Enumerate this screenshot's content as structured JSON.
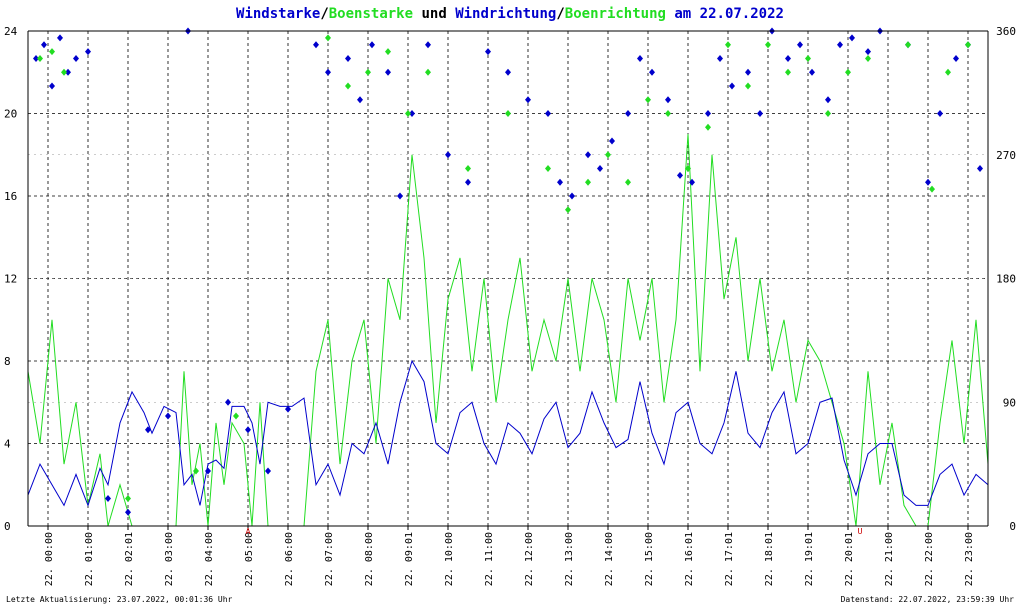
{
  "colors": {
    "wind": "#0000cc",
    "gust": "#22dd22",
    "marker": "#cc0000",
    "grid": "#000000",
    "background": "#ffffff"
  },
  "title": {
    "parts": [
      {
        "text": "Windstarke",
        "color": "#0000cc"
      },
      {
        "text": "/",
        "color": "#000000"
      },
      {
        "text": "Boenstarke",
        "color": "#22dd22"
      },
      {
        "text": " und ",
        "color": "#000000"
      },
      {
        "text": "Windrichtung",
        "color": "#0000cc"
      },
      {
        "text": "/",
        "color": "#000000"
      },
      {
        "text": "Boenrichtung",
        "color": "#22dd22"
      },
      {
        "text": " am 22.07.2022",
        "color": "#0000cc"
      }
    ]
  },
  "footer": {
    "left": "Letzte Aktualisierung: 23.07.2022, 00:01:36 Uhr",
    "right": "Datenstand: 22.07.2022, 23:59:39 Uhr"
  },
  "markers": [
    {
      "label": "A",
      "hour": 5.5
    },
    {
      "label": "U",
      "hour": 20.8
    }
  ],
  "chart_data": {
    "type": "line",
    "x_unit": "hour of day",
    "x_tick_labels": [
      "22. 00:00",
      "22. 01:00",
      "22. 02:01",
      "22. 03:00",
      "22. 04:00",
      "22. 05:00",
      "22. 06:00",
      "22. 07:00",
      "22. 08:00",
      "22. 09:01",
      "22. 10:00",
      "22. 11:00",
      "22. 12:00",
      "22. 13:00",
      "22. 14:00",
      "22. 15:00",
      "22. 16:01",
      "22. 17:01",
      "22. 18:01",
      "22. 19:01",
      "22. 20:01",
      "22. 21:00",
      "22. 22:00",
      "22. 23:00"
    ],
    "xlim": [
      0,
      24
    ],
    "y_left": {
      "ylim": [
        0,
        24
      ],
      "ticks": [
        "0",
        "4",
        "8",
        "12",
        "16",
        "20",
        "24"
      ]
    },
    "y_right": {
      "ylim": [
        0,
        360
      ],
      "ticks": [
        "0",
        "90",
        "180",
        "270",
        "360"
      ]
    },
    "grid": true,
    "series": [
      {
        "kind": "wind_speed",
        "axis": "left",
        "style": "line",
        "points": [
          [
            0,
            1.5
          ],
          [
            0.3,
            3
          ],
          [
            0.6,
            2
          ],
          [
            0.9,
            1
          ],
          [
            1.2,
            2.5
          ],
          [
            1.5,
            1
          ],
          [
            1.8,
            2.8
          ],
          [
            2,
            2
          ],
          [
            2.3,
            5
          ],
          [
            2.6,
            6.5
          ],
          [
            2.9,
            5.5
          ],
          [
            3.1,
            4.5
          ],
          [
            3.4,
            5.8
          ],
          [
            3.7,
            5.5
          ],
          [
            3.9,
            2
          ],
          [
            4.1,
            2.5
          ],
          [
            4.3,
            1
          ],
          [
            4.5,
            3
          ],
          [
            4.7,
            3.2
          ],
          [
            4.9,
            2.8
          ],
          [
            5.1,
            5.8
          ],
          [
            5.4,
            5.8
          ],
          [
            5.6,
            5
          ],
          [
            5.8,
            3
          ],
          [
            6,
            6
          ],
          [
            6.3,
            5.8
          ],
          [
            6.6,
            5.8
          ],
          [
            6.9,
            6.2
          ],
          [
            7.2,
            2
          ],
          [
            7.5,
            3
          ],
          [
            7.8,
            1.5
          ],
          [
            8.1,
            4
          ],
          [
            8.4,
            3.5
          ],
          [
            8.7,
            5
          ],
          [
            9,
            3
          ],
          [
            9.3,
            6
          ],
          [
            9.6,
            8
          ],
          [
            9.9,
            7
          ],
          [
            10.2,
            4
          ],
          [
            10.5,
            3.5
          ],
          [
            10.8,
            5.5
          ],
          [
            11.1,
            6
          ],
          [
            11.4,
            4
          ],
          [
            11.7,
            3
          ],
          [
            12,
            5
          ],
          [
            12.3,
            4.5
          ],
          [
            12.6,
            3.5
          ],
          [
            12.9,
            5.2
          ],
          [
            13.2,
            6
          ],
          [
            13.5,
            3.8
          ],
          [
            13.8,
            4.5
          ],
          [
            14.1,
            6.5
          ],
          [
            14.4,
            5
          ],
          [
            14.7,
            3.8
          ],
          [
            15,
            4.2
          ],
          [
            15.3,
            7
          ],
          [
            15.6,
            4.5
          ],
          [
            15.9,
            3
          ],
          [
            16.2,
            5.5
          ],
          [
            16.5,
            6
          ],
          [
            16.8,
            4
          ],
          [
            17.1,
            3.5
          ],
          [
            17.4,
            5
          ],
          [
            17.7,
            7.5
          ],
          [
            18,
            4.5
          ],
          [
            18.3,
            3.8
          ],
          [
            18.6,
            5.5
          ],
          [
            18.9,
            6.5
          ],
          [
            19.2,
            3.5
          ],
          [
            19.5,
            4
          ],
          [
            19.8,
            6
          ],
          [
            20.1,
            6.2
          ],
          [
            20.4,
            3.2
          ],
          [
            20.7,
            1.5
          ],
          [
            21,
            3.5
          ],
          [
            21.3,
            4
          ],
          [
            21.6,
            4
          ],
          [
            21.9,
            1.5
          ],
          [
            22.2,
            1
          ],
          [
            22.5,
            1
          ],
          [
            22.8,
            2.5
          ],
          [
            23.1,
            3
          ],
          [
            23.4,
            1.5
          ],
          [
            23.7,
            2.5
          ],
          [
            24,
            2
          ]
        ]
      },
      {
        "kind": "gust_speed",
        "axis": "left",
        "style": "line",
        "points": [
          [
            0,
            7.5
          ],
          [
            0.3,
            4
          ],
          [
            0.6,
            10
          ],
          [
            0.9,
            3
          ],
          [
            1.2,
            6
          ],
          [
            1.5,
            1
          ],
          [
            1.8,
            3.5
          ],
          [
            2,
            0
          ],
          [
            2.3,
            2
          ],
          [
            2.6,
            0
          ],
          [
            2.9,
            0
          ],
          [
            3.1,
            0
          ],
          [
            3.4,
            0
          ],
          [
            3.7,
            0
          ],
          [
            3.9,
            7.5
          ],
          [
            4.1,
            2
          ],
          [
            4.3,
            4
          ],
          [
            4.5,
            0
          ],
          [
            4.7,
            5
          ],
          [
            4.9,
            2
          ],
          [
            5.1,
            5
          ],
          [
            5.4,
            4
          ],
          [
            5.6,
            0
          ],
          [
            5.8,
            6
          ],
          [
            6,
            0
          ],
          [
            6.3,
            0
          ],
          [
            6.6,
            0
          ],
          [
            6.9,
            0
          ],
          [
            7.2,
            7.5
          ],
          [
            7.5,
            10
          ],
          [
            7.8,
            3
          ],
          [
            8.1,
            8
          ],
          [
            8.4,
            10
          ],
          [
            8.7,
            4
          ],
          [
            9,
            12
          ],
          [
            9.3,
            10
          ],
          [
            9.6,
            18
          ],
          [
            9.9,
            13
          ],
          [
            10.2,
            5
          ],
          [
            10.5,
            11
          ],
          [
            10.8,
            13
          ],
          [
            11.1,
            7.5
          ],
          [
            11.4,
            12
          ],
          [
            11.7,
            6
          ],
          [
            12,
            10
          ],
          [
            12.3,
            13
          ],
          [
            12.6,
            7.5
          ],
          [
            12.9,
            10
          ],
          [
            13.2,
            8
          ],
          [
            13.5,
            12
          ],
          [
            13.8,
            7.5
          ],
          [
            14.1,
            12
          ],
          [
            14.4,
            10
          ],
          [
            14.7,
            6
          ],
          [
            15,
            12
          ],
          [
            15.3,
            9
          ],
          [
            15.6,
            12
          ],
          [
            15.9,
            6
          ],
          [
            16.2,
            10
          ],
          [
            16.5,
            19
          ],
          [
            16.8,
            7.5
          ],
          [
            17.1,
            18
          ],
          [
            17.4,
            11
          ],
          [
            17.7,
            14
          ],
          [
            18,
            8
          ],
          [
            18.3,
            12
          ],
          [
            18.6,
            7.5
          ],
          [
            18.9,
            10
          ],
          [
            19.2,
            6
          ],
          [
            19.5,
            9
          ],
          [
            19.8,
            8
          ],
          [
            20.1,
            6
          ],
          [
            20.4,
            4
          ],
          [
            20.7,
            0
          ],
          [
            21,
            7.5
          ],
          [
            21.3,
            2
          ],
          [
            21.6,
            5
          ],
          [
            21.9,
            1
          ],
          [
            22.2,
            0
          ],
          [
            22.5,
            0
          ],
          [
            22.8,
            5
          ],
          [
            23.1,
            9
          ],
          [
            23.4,
            4
          ],
          [
            23.7,
            10
          ],
          [
            24,
            3
          ]
        ]
      },
      {
        "kind": "wind_direction",
        "axis": "right",
        "style": "points",
        "points": [
          [
            0.2,
            340
          ],
          [
            0.4,
            350
          ],
          [
            0.6,
            320
          ],
          [
            0.8,
            355
          ],
          [
            1,
            330
          ],
          [
            1.2,
            340
          ],
          [
            1.5,
            345
          ],
          [
            2,
            20
          ],
          [
            2.5,
            10
          ],
          [
            3,
            70
          ],
          [
            3.5,
            80
          ],
          [
            4,
            360
          ],
          [
            4.5,
            40
          ],
          [
            5,
            90
          ],
          [
            5.5,
            70
          ],
          [
            6,
            40
          ],
          [
            6.5,
            85
          ],
          [
            7.2,
            350
          ],
          [
            7.5,
            330
          ],
          [
            8,
            340
          ],
          [
            8.3,
            310
          ],
          [
            8.6,
            350
          ],
          [
            9,
            330
          ],
          [
            9.3,
            240
          ],
          [
            9.6,
            300
          ],
          [
            10,
            350
          ],
          [
            10.5,
            270
          ],
          [
            11,
            250
          ],
          [
            11.5,
            345
          ],
          [
            12,
            330
          ],
          [
            12.5,
            310
          ],
          [
            13,
            300
          ],
          [
            13.3,
            250
          ],
          [
            13.6,
            240
          ],
          [
            14,
            270
          ],
          [
            14.3,
            260
          ],
          [
            14.6,
            280
          ],
          [
            15,
            300
          ],
          [
            15.3,
            340
          ],
          [
            15.6,
            330
          ],
          [
            16,
            310
          ],
          [
            16.3,
            255
          ],
          [
            16.6,
            250
          ],
          [
            17,
            300
          ],
          [
            17.3,
            340
          ],
          [
            17.6,
            320
          ],
          [
            18,
            330
          ],
          [
            18.3,
            300
          ],
          [
            18.6,
            360
          ],
          [
            19,
            340
          ],
          [
            19.3,
            350
          ],
          [
            19.6,
            330
          ],
          [
            20,
            310
          ],
          [
            20.3,
            350
          ],
          [
            20.6,
            355
          ],
          [
            21,
            345
          ],
          [
            21.3,
            360
          ],
          [
            22,
            350
          ],
          [
            22.5,
            250
          ],
          [
            22.8,
            300
          ],
          [
            23.2,
            340
          ],
          [
            23.5,
            350
          ],
          [
            23.8,
            260
          ]
        ]
      },
      {
        "kind": "gust_direction",
        "axis": "right",
        "style": "points",
        "points": [
          [
            0.3,
            340
          ],
          [
            0.6,
            345
          ],
          [
            0.9,
            330
          ],
          [
            2.5,
            20
          ],
          [
            4.2,
            40
          ],
          [
            5.2,
            80
          ],
          [
            7.5,
            355
          ],
          [
            8,
            320
          ],
          [
            8.5,
            330
          ],
          [
            9,
            345
          ],
          [
            9.5,
            300
          ],
          [
            10,
            330
          ],
          [
            11,
            260
          ],
          [
            12,
            300
          ],
          [
            13,
            260
          ],
          [
            13.5,
            230
          ],
          [
            14,
            250
          ],
          [
            14.5,
            270
          ],
          [
            15,
            250
          ],
          [
            15.5,
            310
          ],
          [
            16,
            300
          ],
          [
            16.5,
            260
          ],
          [
            17,
            290
          ],
          [
            17.5,
            350
          ],
          [
            18,
            320
          ],
          [
            18.5,
            350
          ],
          [
            19,
            330
          ],
          [
            19.5,
            340
          ],
          [
            20,
            300
          ],
          [
            20.5,
            330
          ],
          [
            21,
            340
          ],
          [
            22,
            350
          ],
          [
            22.6,
            245
          ],
          [
            23,
            330
          ],
          [
            23.5,
            350
          ]
        ]
      }
    ]
  }
}
